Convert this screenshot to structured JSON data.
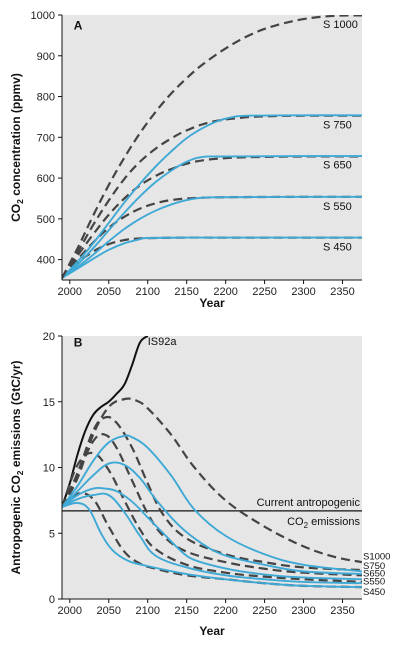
{
  "chart_data": [
    {
      "type": "line",
      "panel": "A",
      "xlabel": "Year",
      "ylabel_parts": [
        "CO",
        "2",
        " concentration  (ppmv)"
      ],
      "xlim": [
        1990,
        2375
      ],
      "ylim": [
        350,
        1000
      ],
      "xticks": [
        2000,
        2050,
        2100,
        2150,
        2200,
        2250,
        2300,
        2350
      ],
      "yticks": [
        400,
        500,
        600,
        700,
        800,
        900,
        1000
      ],
      "grid": false,
      "background": "#e6e6e6",
      "series": [
        {
          "name": "S 450",
          "style": "dashed",
          "color": "#444444",
          "x": [
            1990,
            2010,
            2030,
            2050,
            2070,
            2090,
            2110,
            2150,
            2200,
            2300,
            2375
          ],
          "y": [
            355,
            392,
            420,
            438,
            448,
            452,
            453,
            454,
            454,
            454,
            454
          ]
        },
        {
          "name": "S 450",
          "style": "solid",
          "color": "#3fa9d6",
          "x": [
            1990,
            2010,
            2030,
            2050,
            2070,
            2090,
            2100,
            2150,
            2200,
            2300,
            2375
          ],
          "y": [
            355,
            378,
            402,
            424,
            440,
            450,
            453,
            454,
            454,
            454,
            454
          ]
        },
        {
          "name": "S 550",
          "style": "dashed",
          "color": "#444444",
          "x": [
            1990,
            2010,
            2030,
            2050,
            2070,
            2090,
            2110,
            2130,
            2160,
            2200,
            2300,
            2375
          ],
          "y": [
            355,
            400,
            442,
            478,
            505,
            525,
            538,
            546,
            551,
            553,
            554,
            554
          ]
        },
        {
          "name": "S 550",
          "style": "solid",
          "color": "#3fa9d6",
          "x": [
            1990,
            2010,
            2030,
            2050,
            2070,
            2090,
            2110,
            2130,
            2150,
            2170,
            2200,
            2300,
            2375
          ],
          "y": [
            355,
            382,
            412,
            445,
            475,
            500,
            520,
            535,
            546,
            552,
            553,
            554,
            554
          ]
        },
        {
          "name": "S 650",
          "style": "dashed",
          "color": "#444444",
          "x": [
            1990,
            2010,
            2030,
            2050,
            2070,
            2090,
            2110,
            2130,
            2160,
            2200,
            2250,
            2300,
            2375
          ],
          "y": [
            355,
            410,
            462,
            510,
            550,
            582,
            605,
            622,
            640,
            649,
            652,
            653,
            653
          ]
        },
        {
          "name": "S 650",
          "style": "solid",
          "color": "#3fa9d6",
          "x": [
            1990,
            2010,
            2030,
            2050,
            2070,
            2090,
            2110,
            2130,
            2150,
            2170,
            2200,
            2300,
            2375
          ],
          "y": [
            355,
            388,
            428,
            472,
            515,
            555,
            590,
            618,
            640,
            652,
            653,
            654,
            654
          ]
        },
        {
          "name": "S 750",
          "style": "dashed",
          "color": "#444444",
          "x": [
            1990,
            2010,
            2030,
            2050,
            2070,
            2090,
            2110,
            2130,
            2150,
            2180,
            2220,
            2260,
            2300,
            2375
          ],
          "y": [
            355,
            418,
            485,
            545,
            598,
            640,
            672,
            697,
            717,
            737,
            748,
            752,
            753,
            753
          ]
        },
        {
          "name": "S 750",
          "style": "solid",
          "color": "#3fa9d6",
          "x": [
            1990,
            2010,
            2030,
            2050,
            2070,
            2090,
            2110,
            2130,
            2150,
            2170,
            2190,
            2210,
            2230,
            2300,
            2375
          ],
          "y": [
            355,
            395,
            440,
            490,
            540,
            586,
            628,
            665,
            698,
            722,
            740,
            750,
            753,
            754,
            754
          ]
        },
        {
          "name": "S 1000",
          "style": "dashed",
          "color": "#444444",
          "x": [
            1990,
            2010,
            2030,
            2050,
            2070,
            2090,
            2110,
            2130,
            2150,
            2170,
            2200,
            2230,
            2260,
            2300,
            2340,
            2375
          ],
          "y": [
            355,
            428,
            508,
            583,
            650,
            710,
            762,
            807,
            845,
            878,
            918,
            950,
            972,
            990,
            998,
            999
          ]
        }
      ],
      "labels": [
        {
          "text": "A",
          "x": 2005,
          "y": 965
        },
        {
          "text": "S 1000",
          "x": 2325,
          "y": 968
        },
        {
          "text": "S 750",
          "x": 2325,
          "y": 722
        },
        {
          "text": "S 650",
          "x": 2325,
          "y": 623
        },
        {
          "text": "S 550",
          "x": 2325,
          "y": 522
        },
        {
          "text": "S 450",
          "x": 2325,
          "y": 422
        }
      ]
    },
    {
      "type": "line",
      "panel": "B",
      "xlabel": "Year",
      "ylabel_parts": [
        "Antropogenic  CO",
        "2",
        "  emissions  (GtC/yr)"
      ],
      "xlim": [
        1990,
        2375
      ],
      "ylim": [
        0,
        20
      ],
      "xticks": [
        2000,
        2050,
        2100,
        2150,
        2200,
        2250,
        2300,
        2350
      ],
      "yticks": [
        0,
        5,
        10,
        15,
        20
      ],
      "grid": false,
      "background": "#e6e6e6",
      "reference_line": {
        "y": 6.7,
        "label_line1": "Current antropogenic",
        "label_line2_parts": [
          "CO",
          "2",
          " emissions"
        ]
      },
      "series": [
        {
          "name": "IS92a",
          "style": "solid",
          "color": "#111111",
          "x": [
            1990,
            2000,
            2010,
            2020,
            2030,
            2040,
            2050,
            2060,
            2070,
            2080,
            2090,
            2100
          ],
          "y": [
            7.0,
            8.8,
            11.0,
            12.8,
            14.0,
            14.6,
            15.0,
            15.6,
            16.3,
            17.8,
            19.5,
            20.0
          ]
        },
        {
          "name": "S1000",
          "style": "dashed",
          "color": "#444444",
          "x": [
            1990,
            2010,
            2030,
            2050,
            2070,
            2085,
            2100,
            2130,
            2160,
            2200,
            2250,
            2300,
            2340,
            2375
          ],
          "y": [
            7.0,
            9.2,
            12.5,
            14.6,
            15.2,
            15.1,
            14.5,
            12.5,
            10.0,
            7.5,
            5.5,
            4.0,
            3.2,
            2.8
          ]
        },
        {
          "name": "S750",
          "style": "dashed",
          "color": "#444444",
          "x": [
            1990,
            2010,
            2030,
            2045,
            2060,
            2080,
            2100,
            2120,
            2150,
            2200,
            2250,
            2300,
            2375
          ],
          "y": [
            7.0,
            9.6,
            12.8,
            13.8,
            13.4,
            11.5,
            8.8,
            6.4,
            4.6,
            3.4,
            2.8,
            2.4,
            2.2
          ]
        },
        {
          "name": "S650",
          "style": "dashed",
          "color": "#444444",
          "x": [
            1990,
            2010,
            2030,
            2045,
            2060,
            2080,
            2100,
            2120,
            2150,
            2200,
            2250,
            2300,
            2375
          ],
          "y": [
            7.0,
            9.5,
            12.0,
            12.5,
            11.5,
            9.0,
            6.5,
            4.8,
            3.6,
            2.8,
            2.3,
            2.0,
            1.8
          ]
        },
        {
          "name": "S550",
          "style": "dashed",
          "color": "#444444",
          "x": [
            1990,
            2010,
            2030,
            2050,
            2070,
            2090,
            2110,
            2150,
            2200,
            2250,
            2300,
            2375
          ],
          "y": [
            7.0,
            10.2,
            11.1,
            9.8,
            7.5,
            5.3,
            3.8,
            2.6,
            2.0,
            1.7,
            1.5,
            1.3
          ]
        },
        {
          "name": "S450",
          "style": "dashed",
          "color": "#444444",
          "x": [
            1990,
            2010,
            2030,
            2050,
            2070,
            2090,
            2110,
            2150,
            2200,
            2250,
            2300,
            2375
          ],
          "y": [
            7.0,
            8.0,
            7.6,
            5.5,
            3.6,
            2.7,
            2.3,
            1.8,
            1.5,
            1.2,
            1.0,
            0.9
          ]
        },
        {
          "name": "S1000",
          "style": "solid",
          "color": "#3fa9d6",
          "x": [
            1990,
            2010,
            2030,
            2050,
            2070,
            2080,
            2100,
            2130,
            2160,
            2200,
            2250,
            2300,
            2375
          ],
          "y": [
            7.0,
            8.6,
            10.5,
            11.9,
            12.4,
            12.3,
            11.5,
            9.4,
            6.8,
            4.8,
            3.4,
            2.6,
            2.1
          ]
        },
        {
          "name": "S750",
          "style": "solid",
          "color": "#3fa9d6",
          "x": [
            1990,
            2010,
            2030,
            2050,
            2070,
            2090,
            2110,
            2140,
            2170,
            2200,
            2250,
            2300,
            2375
          ],
          "y": [
            7.0,
            8.2,
            9.4,
            10.3,
            10.2,
            9.2,
            7.6,
            5.6,
            4.2,
            3.3,
            2.6,
            2.1,
            1.9
          ]
        },
        {
          "name": "S650",
          "style": "solid",
          "color": "#3fa9d6",
          "x": [
            1990,
            2010,
            2030,
            2045,
            2060,
            2080,
            2100,
            2120,
            2140,
            2155,
            2180,
            2220,
            2280,
            2375
          ],
          "y": [
            7.0,
            7.9,
            8.4,
            8.4,
            8.2,
            7.4,
            6.2,
            5.0,
            3.8,
            3.1,
            2.6,
            2.1,
            1.7,
            1.5
          ]
        },
        {
          "name": "S550",
          "style": "solid",
          "color": "#3fa9d6",
          "x": [
            1990,
            2010,
            2030,
            2050,
            2070,
            2090,
            2110,
            2150,
            2200,
            2250,
            2300,
            2375
          ],
          "y": [
            7.0,
            7.6,
            7.9,
            7.9,
            6.6,
            4.8,
            3.3,
            2.4,
            1.8,
            1.5,
            1.3,
            1.2
          ]
        },
        {
          "name": "S450",
          "style": "solid",
          "color": "#3fa9d6",
          "x": [
            1990,
            2010,
            2025,
            2040,
            2055,
            2075,
            2100,
            2150,
            2200,
            2250,
            2300,
            2375
          ],
          "y": [
            7.0,
            7.3,
            6.8,
            5.0,
            3.7,
            2.9,
            2.5,
            1.9,
            1.5,
            1.2,
            1.0,
            0.9
          ]
        }
      ],
      "labels": [
        {
          "text": "B",
          "x": 2005,
          "y": 19.2
        },
        {
          "text": "IS92a",
          "x": 2100,
          "y": 19.3
        },
        {
          "text": "S1000",
          "x": 2340,
          "y": 3.0
        },
        {
          "text": "S750",
          "x": 2340,
          "y": 2.3
        },
        {
          "text": "S650",
          "x": 2340,
          "y": 1.7
        },
        {
          "text": "S550",
          "x": 2340,
          "y": 1.1
        },
        {
          "text": "S450",
          "x": 2340,
          "y": 0.3
        }
      ]
    }
  ]
}
